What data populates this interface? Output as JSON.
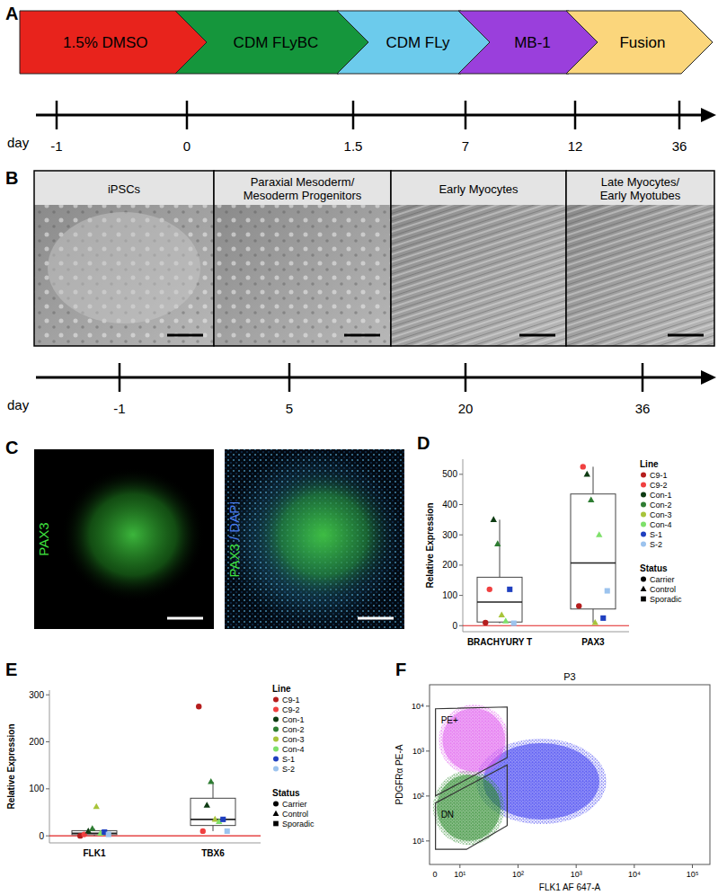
{
  "panels": [
    "A",
    "B",
    "C",
    "D",
    "E",
    "F"
  ],
  "protocol": {
    "stages": [
      {
        "label": "1.5% DMSO",
        "color": "#e8231c"
      },
      {
        "label": "CDM FLyBC",
        "color": "#15963c"
      },
      {
        "label": "CDM FLy",
        "color": "#6ccbec"
      },
      {
        "label": "MB-1",
        "color": "#9a3fdc"
      },
      {
        "label": "Fusion",
        "color": "#fbd67c"
      }
    ],
    "axis_label": "day",
    "days": [
      "-1",
      "0",
      "1.5",
      "7",
      "12",
      "36"
    ]
  },
  "micrographs": {
    "images": [
      {
        "title": [
          "iPSCs"
        ],
        "day": "-1"
      },
      {
        "title": [
          "Paraxial Mesoderm/",
          "Mesoderm Progenitors"
        ],
        "day": "5"
      },
      {
        "title": [
          "Early Myocytes"
        ],
        "day": "20"
      },
      {
        "title": [
          "Late Myocytes/",
          "Early Myotubes"
        ],
        "day": "36"
      }
    ],
    "axis_label": "day"
  },
  "immunostaining": {
    "images": [
      {
        "label": [
          {
            "text": "PAX3",
            "color": "#3fe03f"
          }
        ]
      },
      {
        "label": [
          {
            "text": "PAX3",
            "color": "#3fe03f"
          },
          {
            "text": " / DAPI",
            "color": "#4a7cf0"
          }
        ]
      }
    ]
  },
  "chart_data": [
    {
      "type": "box",
      "y_label": "Relative Expression",
      "categories": [
        "BRACHYURY T",
        "PAX3"
      ],
      "ylim": [
        -20,
        550
      ],
      "yticks": [
        0,
        100,
        200,
        300,
        400,
        500
      ],
      "reference_line": {
        "value": 0,
        "color": "#e02020"
      },
      "boxes": [
        {
          "whisker_low": 8,
          "q1": 12,
          "median": 78,
          "q3": 160,
          "whisker_high": 350
        },
        {
          "whisker_low": 10,
          "q1": 55,
          "median": 207,
          "q3": 435,
          "whisker_high": 525
        }
      ],
      "series": [
        {
          "name": "C9-1",
          "color": "#b51d1d",
          "marker": "circle",
          "values": [
            10,
            65
          ]
        },
        {
          "name": "C9-2",
          "color": "#f04040",
          "marker": "circle",
          "values": [
            120,
            525
          ]
        },
        {
          "name": "Con-1",
          "color": "#0d3b12",
          "marker": "triangle",
          "values": [
            350,
            500
          ]
        },
        {
          "name": "Con-2",
          "color": "#2e7d32",
          "marker": "triangle",
          "values": [
            270,
            415
          ]
        },
        {
          "name": "Con-3",
          "color": "#a8c43a",
          "marker": "triangle",
          "values": [
            35,
            10
          ]
        },
        {
          "name": "Con-4",
          "color": "#7ee06a",
          "marker": "triangle",
          "values": [
            15,
            300
          ]
        },
        {
          "name": "S-1",
          "color": "#1f3fbf",
          "marker": "square",
          "values": [
            120,
            25
          ]
        },
        {
          "name": "S-2",
          "color": "#9cc3ee",
          "marker": "square",
          "values": [
            8,
            115
          ]
        }
      ],
      "legend_title": "Line",
      "status_title": "Status",
      "status": [
        {
          "name": "Carrier",
          "marker": "circle"
        },
        {
          "name": "Control",
          "marker": "triangle"
        },
        {
          "name": "Sporadic",
          "marker": "square"
        }
      ]
    },
    {
      "type": "box",
      "y_label": "Relative Expression",
      "categories": [
        "FLK1",
        "TBX6"
      ],
      "ylim": [
        -15,
        310
      ],
      "yticks": [
        0,
        100,
        200,
        300
      ],
      "reference_line": {
        "value": 0,
        "color": "#e02020"
      },
      "boxes": [
        {
          "whisker_low": 0,
          "q1": 2.5,
          "median": 5.5,
          "q3": 11,
          "whisker_high": 15
        },
        {
          "whisker_low": 10,
          "q1": 22,
          "median": 35,
          "q3": 80,
          "whisker_high": 115
        }
      ],
      "series": [
        {
          "name": "C9-1",
          "color": "#b51d1d",
          "marker": "circle",
          "values": [
            0,
            275
          ]
        },
        {
          "name": "C9-2",
          "color": "#f04040",
          "marker": "circle",
          "values": [
            3,
            10
          ]
        },
        {
          "name": "Con-1",
          "color": "#0d3b12",
          "marker": "triangle",
          "values": [
            10,
            65
          ]
        },
        {
          "name": "Con-2",
          "color": "#2e7d32",
          "marker": "triangle",
          "values": [
            15,
            115
          ]
        },
        {
          "name": "Con-3",
          "color": "#a8c43a",
          "marker": "triangle",
          "values": [
            62,
            35
          ]
        },
        {
          "name": "Con-4",
          "color": "#7ee06a",
          "marker": "triangle",
          "values": [
            5,
            30
          ]
        },
        {
          "name": "S-1",
          "color": "#1f3fbf",
          "marker": "square",
          "values": [
            8,
            35
          ]
        },
        {
          "name": "S-2",
          "color": "#9cc3ee",
          "marker": "square",
          "values": [
            3,
            10
          ]
        }
      ],
      "legend_title": "Line",
      "status_title": "Status",
      "status": [
        {
          "name": "Carrier",
          "marker": "circle"
        },
        {
          "name": "Control",
          "marker": "triangle"
        },
        {
          "name": "Sporadic",
          "marker": "square"
        }
      ]
    },
    {
      "type": "scatter",
      "title": "P3",
      "x_label": "FLK1 AF 647-A",
      "y_label": "PDGFRα PE-A",
      "log": true,
      "origin_label": "0",
      "xlim": [
        3,
        200000
      ],
      "ylim": [
        3,
        30000
      ],
      "xticks": [
        {
          "value": 10,
          "label": "10¹"
        },
        {
          "value": 100,
          "label": "10²"
        },
        {
          "value": 1000,
          "label": "10³"
        },
        {
          "value": 10000,
          "label": "10⁴"
        },
        {
          "value": 100000,
          "label": "10⁵"
        }
      ],
      "yticks": [
        {
          "value": 10,
          "label": "10¹"
        },
        {
          "value": 100,
          "label": "10²"
        },
        {
          "value": 1000,
          "label": "10³"
        },
        {
          "value": 10000,
          "label": "10⁴"
        }
      ],
      "populations": [
        {
          "color": "#3a3af0",
          "x_range": [
            25,
            2500
          ],
          "y_range": [
            30,
            1500
          ]
        },
        {
          "color": "#2e8b2e",
          "x_range": [
            4,
            50
          ],
          "y_range": [
            10,
            300
          ]
        },
        {
          "color": "#e060ee",
          "x_range": [
            5,
            60
          ],
          "y_range": [
            350,
            9000
          ]
        }
      ],
      "gates": [
        {
          "name": "PE+",
          "points": [
            [
              3.8,
              8750
            ],
            [
              65,
              9600
            ],
            [
              65,
              713
            ],
            [
              3.8,
              100
            ]
          ]
        },
        {
          "name": "DN",
          "points": [
            [
              3.8,
              70
            ],
            [
              65,
              495
            ],
            [
              65,
              22
            ],
            [
              13,
              6.5
            ],
            [
              3.8,
              6.5
            ]
          ]
        }
      ]
    }
  ]
}
